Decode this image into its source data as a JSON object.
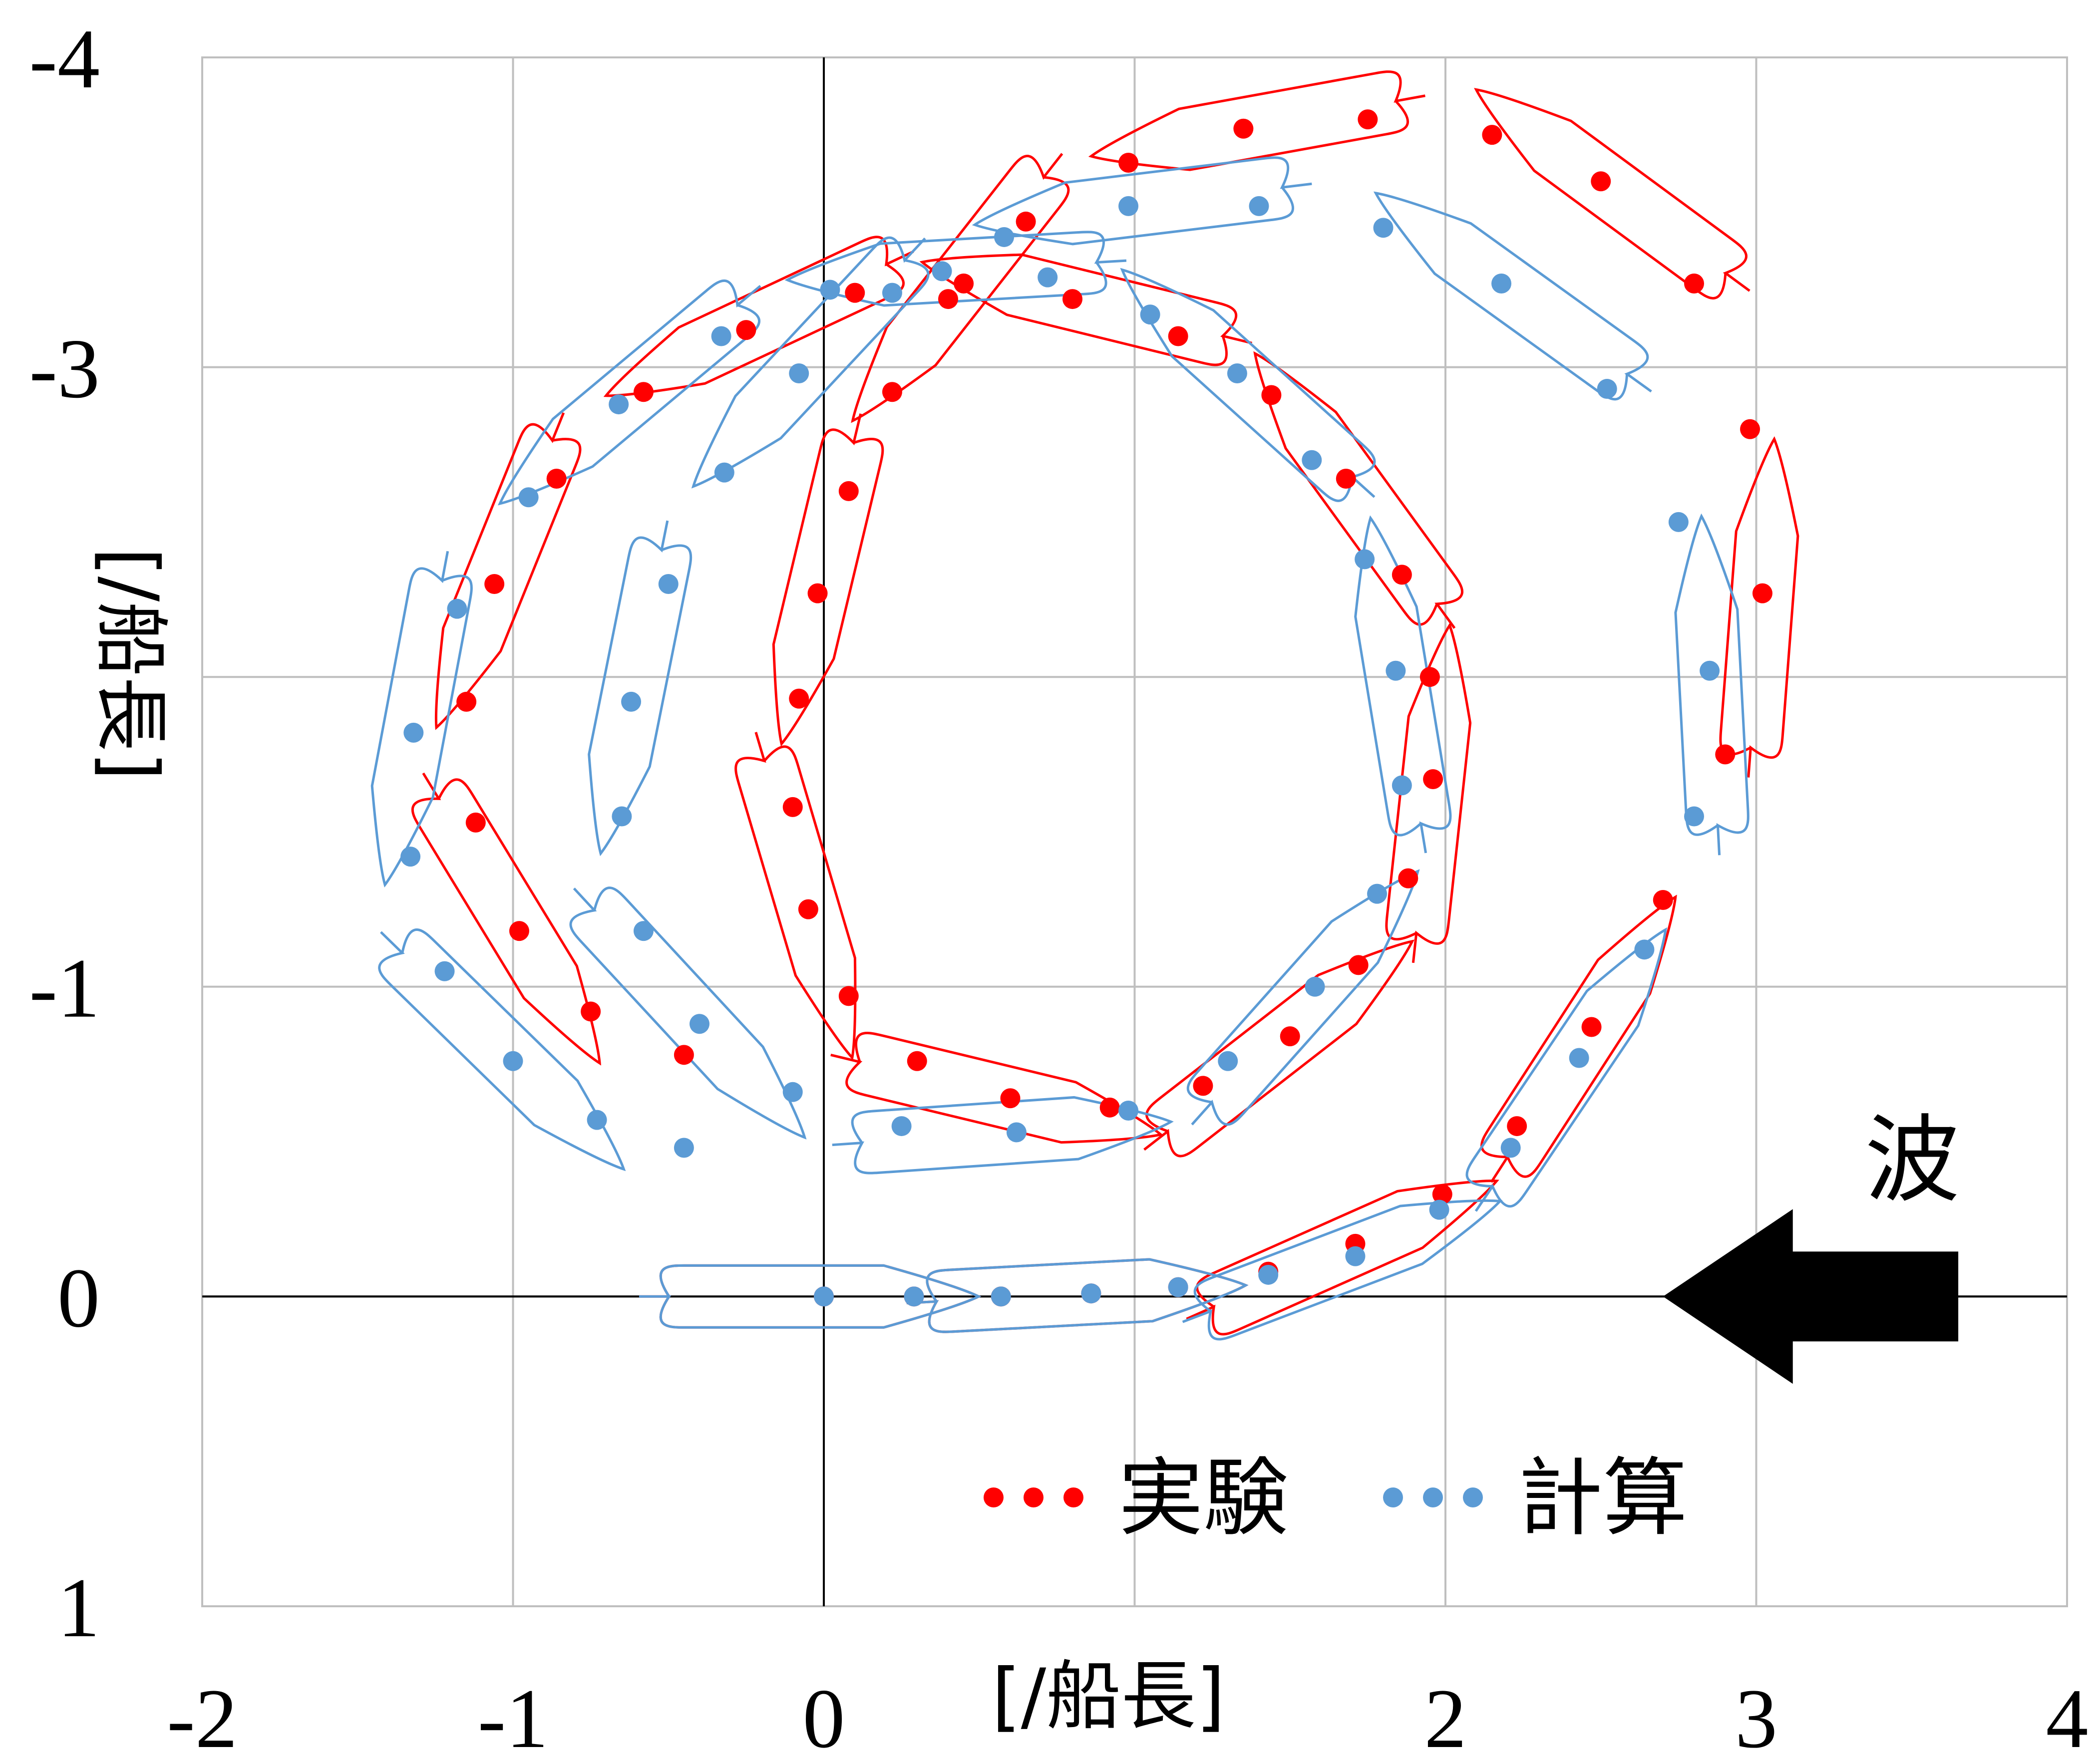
{
  "chart_data": {
    "type": "scatter",
    "title": "",
    "xlabel": "[/船長]",
    "ylabel": "[/船長]",
    "xlim": [
      -2,
      4
    ],
    "ylim": [
      -4,
      1
    ],
    "y_inverted": true,
    "x_ticks": [
      -2,
      -1,
      0,
      1,
      2,
      3,
      4
    ],
    "x_tick_labels": [
      "-2",
      "-1",
      "0",
      "",
      "2",
      "3",
      "4"
    ],
    "y_ticks": [
      -4,
      -3,
      -2,
      -1,
      0,
      1
    ],
    "y_tick_labels": [
      "-4",
      "-3",
      "",
      "-1",
      "0",
      "1"
    ],
    "grid": true,
    "legend_position": "bottom-right",
    "annotation": {
      "text": "波",
      "arrow_direction": "left",
      "arrow_x": [
        2.7,
        3.65
      ],
      "arrow_y": 0
    },
    "series": [
      {
        "name": "実験",
        "color": "#ff0000",
        "marker": "dot",
        "points": [
          [
            0,
            0
          ],
          [
            0.29,
            0
          ],
          [
            0.57,
            0
          ],
          [
            0.86,
            -0.01
          ],
          [
            1.14,
            -0.03
          ],
          [
            1.43,
            -0.08
          ],
          [
            1.71,
            -0.17
          ],
          [
            1.99,
            -0.33
          ],
          [
            2.23,
            -0.55
          ],
          [
            2.47,
            -0.87
          ],
          [
            2.7,
            -1.28
          ],
          [
            2.9,
            -1.75
          ],
          [
            3.02,
            -2.27
          ],
          [
            2.98,
            -2.8
          ],
          [
            2.8,
            -3.27
          ],
          [
            2.5,
            -3.6
          ],
          [
            2.15,
            -3.75
          ],
          [
            1.75,
            -3.8
          ],
          [
            1.35,
            -3.77
          ],
          [
            0.98,
            -3.66
          ],
          [
            0.65,
            -3.47
          ],
          [
            0.4,
            -3.22
          ],
          [
            0.22,
            -2.92
          ],
          [
            0.08,
            -2.6
          ],
          [
            -0.02,
            -2.27
          ],
          [
            -0.08,
            -1.93
          ],
          [
            -0.1,
            -1.58
          ],
          [
            -0.05,
            -1.25
          ],
          [
            0.08,
            -0.97
          ],
          [
            0.3,
            -0.76
          ],
          [
            0.6,
            -0.64
          ],
          [
            0.92,
            -0.61
          ],
          [
            1.22,
            -0.68
          ],
          [
            1.5,
            -0.84
          ],
          [
            1.72,
            -1.07
          ],
          [
            1.88,
            -1.35
          ],
          [
            1.96,
            -1.67
          ],
          [
            1.95,
            -2.0
          ],
          [
            1.86,
            -2.33
          ],
          [
            1.68,
            -2.64
          ],
          [
            1.44,
            -2.91
          ],
          [
            1.14,
            -3.1
          ],
          [
            0.8,
            -3.22
          ],
          [
            0.45,
            -3.27
          ],
          [
            0.1,
            -3.24
          ],
          [
            -0.25,
            -3.12
          ],
          [
            -0.58,
            -2.92
          ],
          [
            -0.86,
            -2.64
          ],
          [
            -1.06,
            -2.3
          ],
          [
            -1.15,
            -1.92
          ],
          [
            -1.12,
            -1.53
          ],
          [
            -0.98,
            -1.18
          ],
          [
            -0.75,
            -0.92
          ],
          [
            -0.45,
            -0.78
          ]
        ]
      },
      {
        "name": "計算",
        "color": "#5b9bd5",
        "marker": "dot",
        "points": [
          [
            0,
            0
          ],
          [
            0.29,
            0
          ],
          [
            0.57,
            0
          ],
          [
            0.86,
            -0.01
          ],
          [
            1.14,
            -0.03
          ],
          [
            1.43,
            -0.07
          ],
          [
            1.71,
            -0.13
          ],
          [
            1.98,
            -0.28
          ],
          [
            2.21,
            -0.48
          ],
          [
            2.43,
            -0.77
          ],
          [
            2.64,
            -1.12
          ],
          [
            2.8,
            -1.55
          ],
          [
            2.85,
            -2.02
          ],
          [
            2.75,
            -2.5
          ],
          [
            2.52,
            -2.93
          ],
          [
            2.18,
            -3.27
          ],
          [
            1.8,
            -3.45
          ],
          [
            1.4,
            -3.52
          ],
          [
            0.98,
            -3.52
          ],
          [
            0.58,
            -3.42
          ],
          [
            0.22,
            -3.24
          ],
          [
            -0.08,
            -2.98
          ],
          [
            -0.32,
            -2.66
          ],
          [
            -0.5,
            -2.3
          ],
          [
            -0.62,
            -1.92
          ],
          [
            -0.65,
            -1.55
          ],
          [
            -0.58,
            -1.18
          ],
          [
            -0.4,
            -0.88
          ],
          [
            -0.1,
            -0.66
          ],
          [
            0.25,
            -0.55
          ],
          [
            0.62,
            -0.53
          ],
          [
            0.98,
            -0.6
          ],
          [
            1.3,
            -0.76
          ],
          [
            1.58,
            -1.0
          ],
          [
            1.78,
            -1.3
          ],
          [
            1.86,
            -1.65
          ],
          [
            1.84,
            -2.02
          ],
          [
            1.74,
            -2.38
          ],
          [
            1.57,
            -2.7
          ],
          [
            1.33,
            -2.98
          ],
          [
            1.05,
            -3.17
          ],
          [
            0.72,
            -3.29
          ],
          [
            0.38,
            -3.31
          ],
          [
            0.02,
            -3.25
          ],
          [
            -0.33,
            -3.1
          ],
          [
            -0.66,
            -2.88
          ],
          [
            -0.95,
            -2.58
          ],
          [
            -1.18,
            -2.22
          ],
          [
            -1.32,
            -1.82
          ],
          [
            -1.33,
            -1.42
          ],
          [
            -1.22,
            -1.05
          ],
          [
            -1.0,
            -0.76
          ],
          [
            -0.73,
            -0.57
          ],
          [
            -0.45,
            -0.48
          ]
        ]
      }
    ]
  }
}
